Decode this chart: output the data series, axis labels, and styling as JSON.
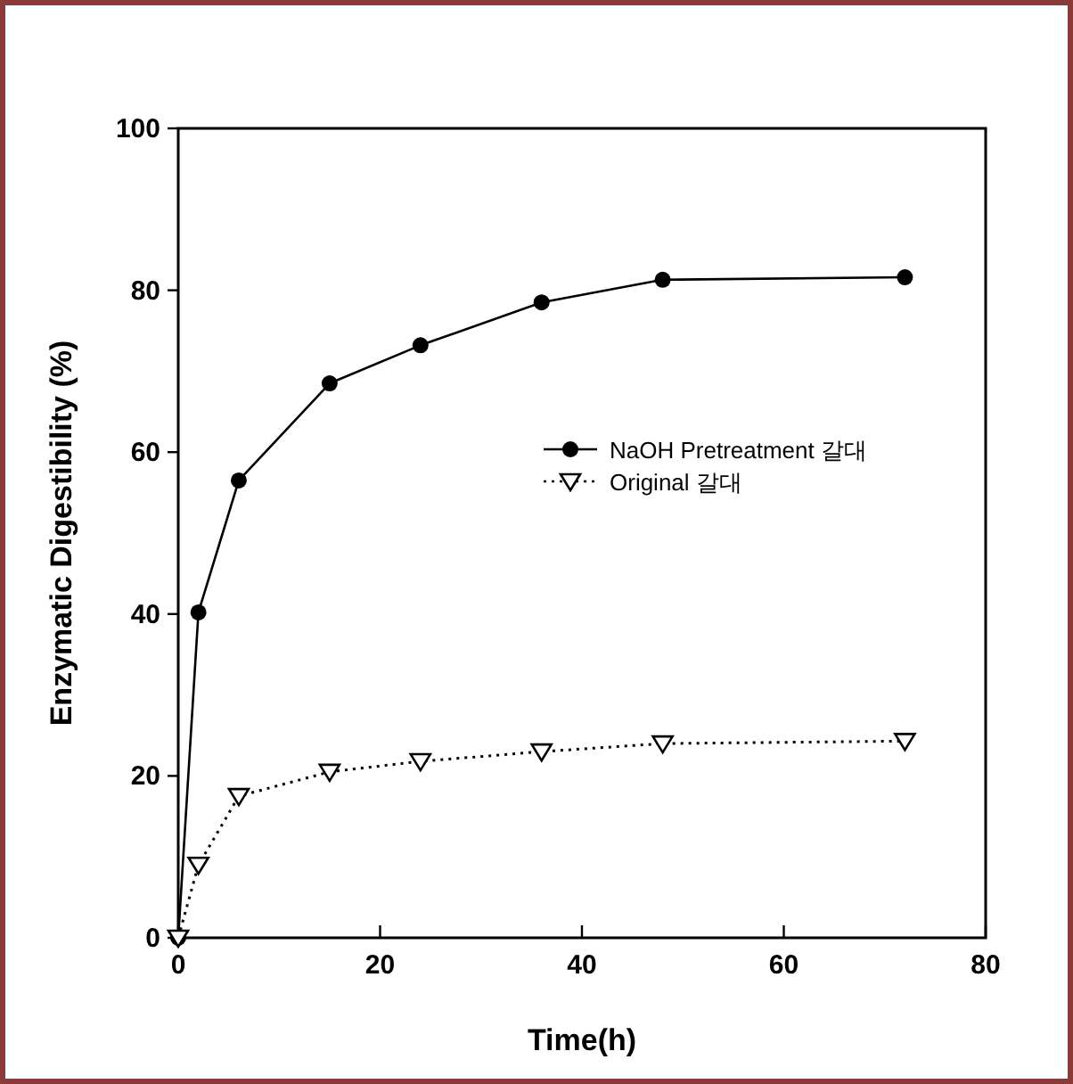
{
  "chart_data": {
    "type": "line",
    "xlabel": "Time(h)",
    "ylabel": "Enzymatic Digestibility (%)",
    "xlim": [
      0,
      80
    ],
    "ylim": [
      0,
      100
    ],
    "xticks": [
      0,
      20,
      40,
      60,
      80
    ],
    "yticks": [
      0,
      20,
      40,
      60,
      80,
      100
    ],
    "legend": "right",
    "grid": false,
    "series": [
      {
        "name": "NaOH Pretreatment 갈대",
        "color": "#000000",
        "marker": "circle",
        "line_style": "solid",
        "x": [
          0,
          2,
          6,
          15,
          24,
          36,
          48,
          72
        ],
        "values": [
          0,
          40.2,
          56.5,
          68.5,
          73.2,
          78.5,
          81.3,
          81.6
        ]
      },
      {
        "name": "Original 갈대",
        "color": "#000000",
        "marker": "triangle",
        "line_style": "dotted",
        "x": [
          0,
          2,
          6,
          15,
          24,
          36,
          48,
          72
        ],
        "values": [
          0,
          9,
          17.5,
          20.5,
          21.8,
          23,
          24,
          24.3
        ]
      }
    ]
  }
}
